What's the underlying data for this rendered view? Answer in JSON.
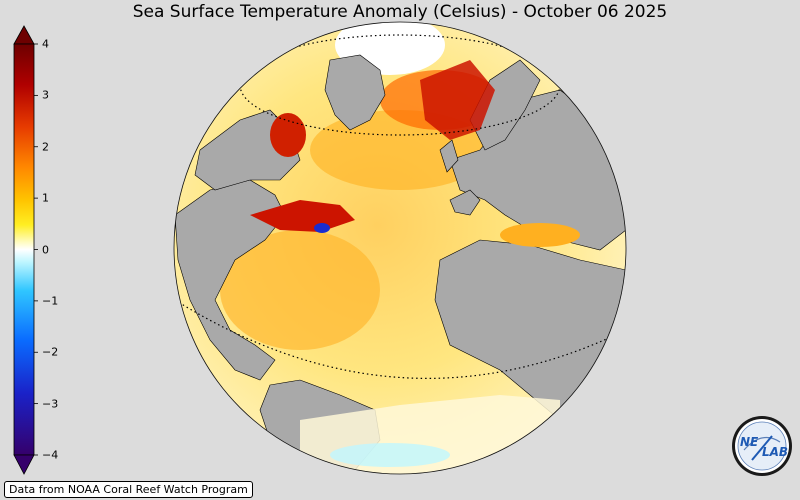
{
  "title": "Sea Surface Temperature Anomaly (Celsius) - October 06 2025",
  "colorbar": {
    "min": -4,
    "max": 4,
    "ticks": [
      "4",
      "3",
      "2",
      "1",
      "0",
      "−1",
      "−2",
      "−3",
      "−4"
    ],
    "tick_values": [
      4,
      3,
      2,
      1,
      0,
      -1,
      -2,
      -3,
      -4
    ],
    "colors": [
      "#35006b",
      "#1a22c8",
      "#0a6cff",
      "#30c6ff",
      "#bff6ff",
      "#ffffff",
      "#fffbb8",
      "#ffee22",
      "#ffc400",
      "#ff8800",
      "#e63a00",
      "#b00000",
      "#6e0000"
    ]
  },
  "map": {
    "ocean_color": "#ffe27a",
    "land_color": "#a9a9a9",
    "warm_hotspot_color": "#cc1400",
    "cold_spot_color": "#1a2cd0"
  },
  "credit": "Data from NOAA Coral Reef Watch Program",
  "logo": {
    "text_left": "NE",
    "text_right": "LAB"
  }
}
